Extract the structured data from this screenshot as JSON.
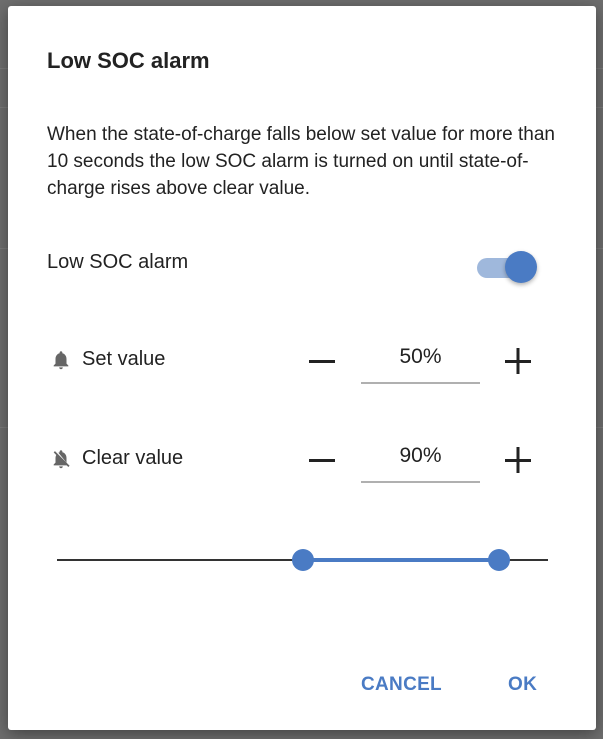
{
  "dialog": {
    "title": "Low SOC alarm",
    "description": "When the state-of-charge falls below set value for more than 10 seconds the low SOC alarm is turned on until state-of-charge rises above clear value.",
    "toggle": {
      "label": "Low SOC alarm",
      "on": true
    },
    "set_value": {
      "label": "Set value",
      "value": "50%",
      "icon": "bell-icon"
    },
    "clear_value": {
      "label": "Clear value",
      "value": "90%",
      "icon": "bell-off-icon"
    },
    "range_slider": {
      "min": 0,
      "max": 100,
      "low": 50,
      "high": 90
    },
    "actions": {
      "cancel": "CANCEL",
      "ok": "OK"
    }
  },
  "colors": {
    "accent": "#4a7bc4",
    "accent_light": "#9fb8dc",
    "backdrop": "#6e6e6e"
  }
}
